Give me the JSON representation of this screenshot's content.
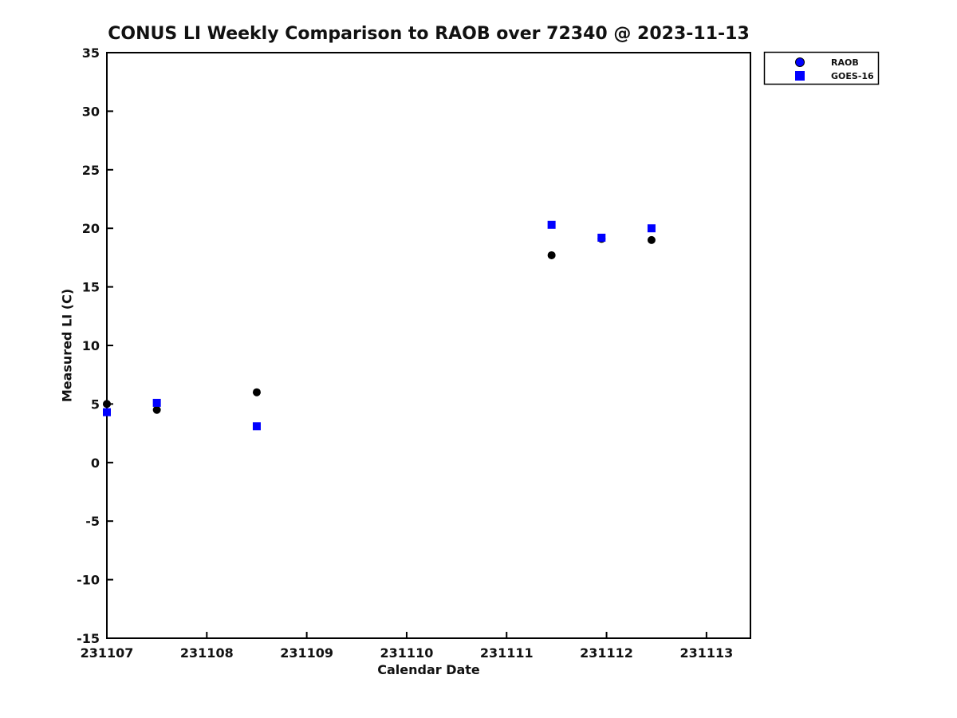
{
  "chart_data": {
    "type": "scatter",
    "title": "CONUS LI Weekly Comparison to RAOB over 72340 @ 2023-11-13",
    "xlabel": "Calendar Date",
    "ylabel": "Measured LI (C)",
    "xlim": [
      231107,
      231113.44
    ],
    "ylim": [
      -15,
      35
    ],
    "xticks": [
      231107,
      231108,
      231109,
      231110,
      231111,
      231112,
      231113
    ],
    "yticks": [
      -15,
      -10,
      -5,
      0,
      5,
      10,
      15,
      20,
      25,
      30,
      35
    ],
    "grid": false,
    "legend_position": "outside-top-right",
    "series": [
      {
        "name": "RAOB",
        "marker": "circle",
        "plot_color": "#000000",
        "legend_fill": "#0000ff",
        "legend_edge": "#000000",
        "points": [
          [
            231107.0,
            5.0
          ],
          [
            231107.5,
            4.5
          ],
          [
            231108.5,
            6.0
          ],
          [
            231111.45,
            17.7
          ],
          [
            231111.95,
            19.1
          ],
          [
            231112.45,
            19.0
          ]
        ]
      },
      {
        "name": "GOES-16",
        "marker": "square",
        "plot_color": "#0000ff",
        "legend_fill": "#0000ff",
        "legend_edge": "#0000ff",
        "points": [
          [
            231107.0,
            4.3
          ],
          [
            231107.5,
            5.1
          ],
          [
            231108.5,
            3.1
          ],
          [
            231111.45,
            20.3
          ],
          [
            231111.95,
            19.2
          ],
          [
            231112.45,
            20.0
          ]
        ]
      }
    ]
  },
  "colors": {
    "background": "#ffffff",
    "axis": "#000000",
    "blue": "#0000ff",
    "black": "#000000"
  }
}
